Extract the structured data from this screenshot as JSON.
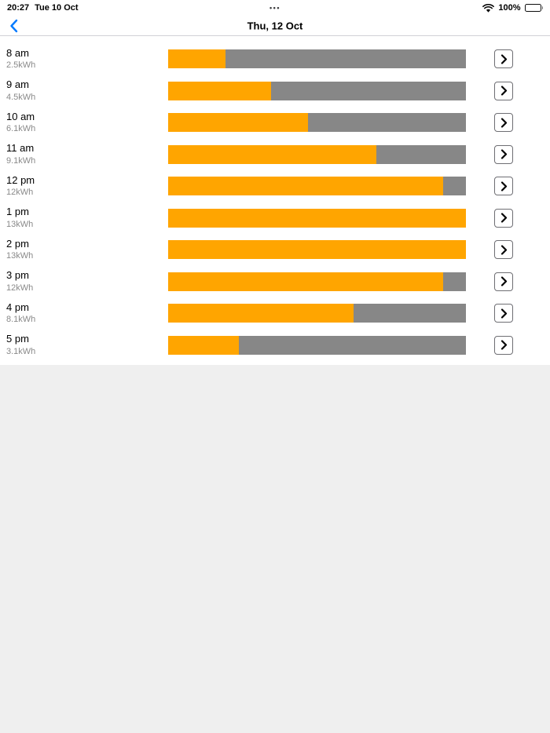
{
  "status_bar": {
    "time": "20:27",
    "date": "Tue 10 Oct",
    "center_dots": "•••",
    "battery_percent": "100%"
  },
  "nav_bar": {
    "title": "Thu, 12 Oct"
  },
  "colors": {
    "accent_blue": "#007AFF",
    "bar_fill": "#FFA500",
    "bar_track": "#878787",
    "background": "#EFEFEF"
  },
  "chart_data": {
    "type": "bar",
    "orientation": "horizontal",
    "title": "Thu, 12 Oct",
    "unit": "kWh",
    "categories": [
      "8 am",
      "9 am",
      "10 am",
      "11 am",
      "12 pm",
      "1 pm",
      "2 pm",
      "3 pm",
      "4 pm",
      "5 pm"
    ],
    "values": [
      2.5,
      4.5,
      6.1,
      9.1,
      12,
      13,
      13,
      12,
      8.1,
      3.1
    ],
    "value_labels": [
      "2.5kWh",
      "4.5kWh",
      "6.1kWh",
      "9.1kWh",
      "12kWh",
      "13kWh",
      "13kWh",
      "12kWh",
      "8.1kWh",
      "3.1kWh"
    ],
    "xlim": [
      0,
      13
    ],
    "legend": "off",
    "grid": "off"
  },
  "rows": [
    {
      "time": "8 am",
      "kwh": "2.5kWh",
      "percent": 19.2
    },
    {
      "time": "9 am",
      "kwh": "4.5kWh",
      "percent": 34.6
    },
    {
      "time": "10 am",
      "kwh": "6.1kWh",
      "percent": 46.9
    },
    {
      "time": "11 am",
      "kwh": "9.1kWh",
      "percent": 70.0
    },
    {
      "time": "12 pm",
      "kwh": "12kWh",
      "percent": 92.3
    },
    {
      "time": "1 pm",
      "kwh": "13kWh",
      "percent": 100
    },
    {
      "time": "2 pm",
      "kwh": "13kWh",
      "percent": 100
    },
    {
      "time": "3 pm",
      "kwh": "12kWh",
      "percent": 92.3
    },
    {
      "time": "4 pm",
      "kwh": "8.1kWh",
      "percent": 62.3
    },
    {
      "time": "5 pm",
      "kwh": "3.1kWh",
      "percent": 23.8
    }
  ]
}
